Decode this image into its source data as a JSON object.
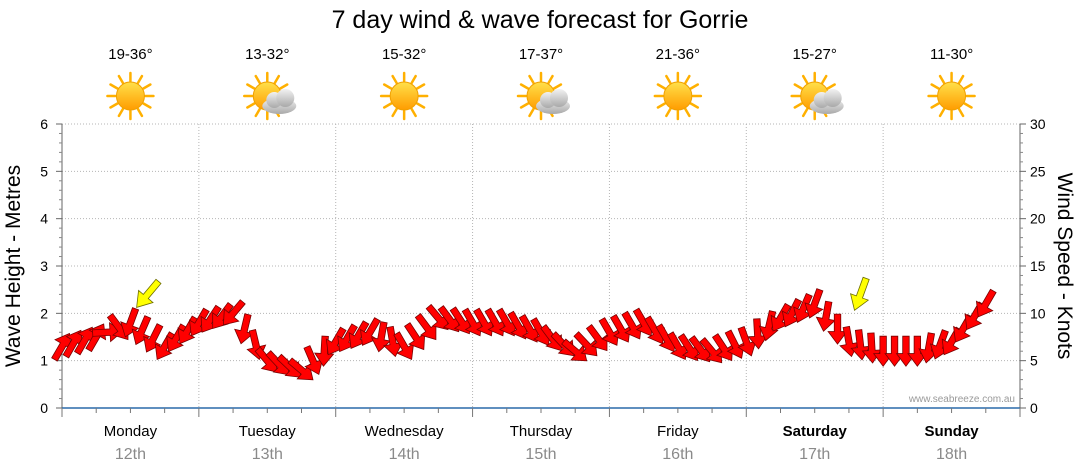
{
  "chart_data": {
    "type": "line",
    "title": "7 day wind & wave forecast for Gorrie",
    "ylabel_left": "Wave Height - Metres",
    "ylabel_right": "Wind Speed - Knots",
    "ylim_left": [
      0,
      6
    ],
    "ylim_right": [
      0,
      30
    ],
    "yticks_left": [
      "0",
      "1",
      "2",
      "3",
      "4",
      "5",
      "6"
    ],
    "yticks_right": [
      "0",
      "5",
      "10",
      "15",
      "20",
      "25",
      "30"
    ],
    "grid": true,
    "watermark": "www.seabreeze.com.au",
    "days": [
      {
        "day": "Monday",
        "date": "12th",
        "temp": "19-36°",
        "weather": "sunny-icon",
        "bold": false
      },
      {
        "day": "Tuesday",
        "date": "13th",
        "temp": "13-32°",
        "weather": "partly-cloudy-icon",
        "bold": false
      },
      {
        "day": "Wednesday",
        "date": "14th",
        "temp": "15-32°",
        "weather": "sunny-icon",
        "bold": false
      },
      {
        "day": "Thursday",
        "date": "15th",
        "temp": "17-37°",
        "weather": "partly-cloudy-icon",
        "bold": false
      },
      {
        "day": "Friday",
        "date": "16th",
        "temp": "21-36°",
        "weather": "sunny-icon",
        "bold": false
      },
      {
        "day": "Saturday",
        "date": "17th",
        "temp": "15-27°",
        "weather": "partly-cloudy-icon",
        "bold": true
      },
      {
        "day": "Sunday",
        "date": "18th",
        "temp": "11-30°",
        "weather": "sunny-icon",
        "bold": true
      }
    ],
    "series": [
      {
        "name": "Wind Speed - Knots",
        "color": "#ff0000",
        "x_hours": [
          0,
          6,
          12,
          18,
          24,
          30,
          36,
          42,
          48,
          54,
          60,
          66,
          72,
          78,
          84,
          90,
          96,
          102,
          108,
          114,
          120,
          126,
          132,
          138,
          144,
          150,
          156,
          162
        ],
        "speed": [
          6.5,
          7.5,
          9,
          6.5,
          9,
          10,
          5,
          4,
          7,
          8,
          6.5,
          9.5,
          9,
          9,
          8,
          6,
          8,
          9,
          6.5,
          6,
          7,
          9.5,
          11,
          7,
          6,
          6,
          7,
          11
        ],
        "direction_deg": [
          60,
          60,
          250,
          240,
          240,
          230,
          310,
          320,
          240,
          240,
          300,
          310,
          300,
          300,
          300,
          320,
          300,
          300,
          300,
          310,
          290,
          240,
          250,
          280,
          270,
          270,
          240,
          240
        ]
      },
      {
        "name": "Swell",
        "color": "#ffff00",
        "x_hours": [
          15,
          140
        ],
        "height_m": [
          2.4,
          2.4
        ],
        "direction_deg": [
          230,
          250
        ]
      }
    ]
  }
}
